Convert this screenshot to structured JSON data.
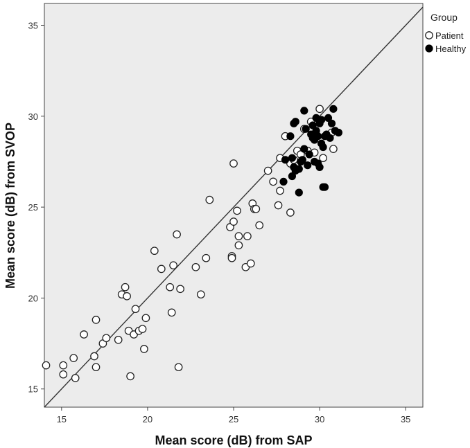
{
  "chart_data": {
    "type": "scatter",
    "xlabel": "Mean score (dB) from SAP",
    "ylabel": "Mean score (dB) from SVOP",
    "xlim": [
      14,
      36
    ],
    "ylim": [
      14,
      36.2
    ],
    "xticks": [
      15,
      20,
      25,
      30,
      35
    ],
    "yticks": [
      15,
      20,
      25,
      30,
      35
    ],
    "grid": false,
    "reference_line": "identity (y = x)",
    "background": "#ececec",
    "legend": {
      "title": "Group",
      "position": "top-right, outside plot"
    },
    "series": [
      {
        "name": "Patient",
        "marker": "open-circle",
        "color": "#222222",
        "points": [
          [
            14.1,
            16.3
          ],
          [
            15.1,
            16.3
          ],
          [
            15.1,
            15.8
          ],
          [
            15.7,
            16.7
          ],
          [
            15.8,
            15.6
          ],
          [
            16.3,
            18.0
          ],
          [
            16.9,
            16.8
          ],
          [
            17.0,
            16.2
          ],
          [
            17.0,
            18.8
          ],
          [
            17.4,
            17.5
          ],
          [
            17.6,
            17.8
          ],
          [
            18.3,
            17.7
          ],
          [
            18.5,
            20.2
          ],
          [
            18.7,
            20.6
          ],
          [
            18.8,
            20.1
          ],
          [
            18.9,
            18.2
          ],
          [
            19.0,
            15.7
          ],
          [
            19.2,
            18.0
          ],
          [
            19.3,
            19.4
          ],
          [
            19.5,
            18.2
          ],
          [
            19.7,
            18.3
          ],
          [
            19.8,
            17.2
          ],
          [
            19.9,
            18.9
          ],
          [
            20.4,
            22.6
          ],
          [
            20.8,
            21.6
          ],
          [
            21.3,
            20.6
          ],
          [
            21.4,
            19.2
          ],
          [
            21.5,
            21.8
          ],
          [
            21.7,
            23.5
          ],
          [
            21.8,
            16.2
          ],
          [
            21.9,
            20.5
          ],
          [
            22.8,
            21.7
          ],
          [
            23.1,
            20.2
          ],
          [
            23.4,
            22.2
          ],
          [
            23.6,
            25.4
          ],
          [
            24.8,
            23.9
          ],
          [
            24.9,
            22.3
          ],
          [
            24.9,
            22.2
          ],
          [
            25.0,
            27.4
          ],
          [
            25.0,
            24.2
          ],
          [
            25.2,
            24.8
          ],
          [
            25.3,
            23.4
          ],
          [
            25.3,
            22.9
          ],
          [
            25.7,
            21.7
          ],
          [
            25.8,
            23.4
          ],
          [
            26.0,
            21.9
          ],
          [
            26.1,
            25.2
          ],
          [
            26.2,
            24.9
          ],
          [
            26.3,
            24.9
          ],
          [
            26.5,
            24.0
          ],
          [
            27.0,
            27.0
          ],
          [
            27.3,
            26.4
          ],
          [
            27.6,
            25.1
          ],
          [
            27.7,
            25.9
          ],
          [
            27.7,
            27.7
          ],
          [
            28.0,
            28.9
          ],
          [
            28.3,
            27.4
          ],
          [
            28.3,
            24.7
          ],
          [
            28.5,
            27.6
          ],
          [
            28.7,
            28.1
          ],
          [
            28.9,
            27.9
          ],
          [
            29.1,
            29.3
          ],
          [
            29.3,
            28.1
          ],
          [
            29.5,
            29.7
          ],
          [
            29.7,
            28.0
          ],
          [
            29.8,
            29.0
          ],
          [
            30.0,
            30.4
          ],
          [
            30.2,
            27.7
          ],
          [
            30.7,
            29.1
          ],
          [
            30.8,
            28.2
          ]
        ]
      },
      {
        "name": "Healthy",
        "marker": "filled-circle",
        "color": "#000000",
        "points": [
          [
            27.9,
            26.4
          ],
          [
            28.0,
            27.6
          ],
          [
            28.3,
            28.9
          ],
          [
            28.4,
            26.7
          ],
          [
            28.4,
            27.7
          ],
          [
            28.5,
            27.2
          ],
          [
            28.5,
            29.6
          ],
          [
            28.6,
            29.7
          ],
          [
            28.6,
            27.0
          ],
          [
            28.8,
            27.1
          ],
          [
            28.8,
            25.8
          ],
          [
            28.9,
            27.5
          ],
          [
            29.0,
            27.6
          ],
          [
            29.1,
            30.3
          ],
          [
            29.2,
            29.3
          ],
          [
            29.3,
            27.3
          ],
          [
            29.4,
            27.9
          ],
          [
            29.5,
            29.0
          ],
          [
            29.6,
            29.5
          ],
          [
            29.6,
            28.8
          ],
          [
            29.7,
            27.5
          ],
          [
            29.7,
            28.7
          ],
          [
            29.8,
            29.2
          ],
          [
            29.8,
            29.9
          ],
          [
            29.9,
            28.9
          ],
          [
            29.9,
            27.4
          ],
          [
            30.0,
            29.6
          ],
          [
            30.1,
            28.5
          ],
          [
            30.1,
            29.8
          ],
          [
            30.2,
            28.3
          ],
          [
            30.2,
            26.1
          ],
          [
            30.3,
            28.9
          ],
          [
            30.3,
            26.1
          ],
          [
            30.4,
            29.0
          ],
          [
            30.5,
            29.9
          ],
          [
            30.6,
            28.8
          ],
          [
            30.7,
            29.6
          ],
          [
            30.8,
            30.4
          ],
          [
            30.9,
            29.2
          ],
          [
            31.1,
            29.1
          ],
          [
            30.0,
            27.2
          ],
          [
            29.1,
            28.2
          ]
        ]
      }
    ]
  }
}
